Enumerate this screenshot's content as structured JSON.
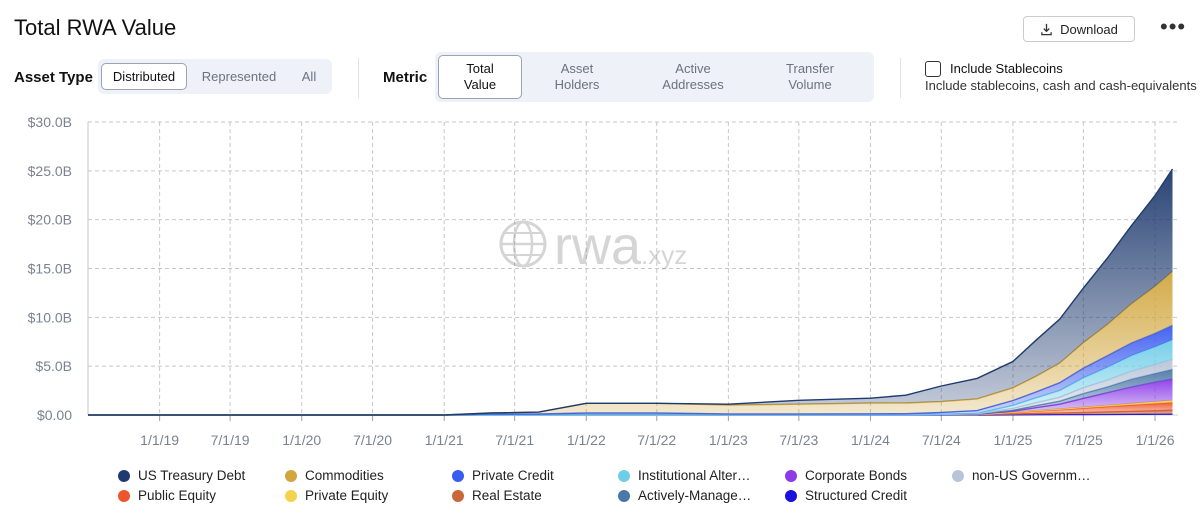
{
  "header": {
    "title": "Total RWA Value",
    "download_label": "Download",
    "more_label": "•••"
  },
  "asset_type": {
    "label": "Asset Type",
    "options": [
      "Distributed",
      "Represented",
      "All"
    ],
    "selected": "Distributed"
  },
  "metric": {
    "label": "Metric",
    "options": [
      [
        "Total",
        "Value"
      ],
      [
        "Asset",
        "Holders"
      ],
      [
        "Active",
        "Addresses"
      ],
      [
        "Transfer",
        "Volume"
      ]
    ],
    "selected": "Total Value"
  },
  "stablecoins": {
    "label": "Include Stablecoins",
    "description": "Include stablecoins, cash and cash-equivalents",
    "checked": false
  },
  "watermark": "rwa.xyz",
  "chart_data": {
    "type": "area",
    "stacked": true,
    "yticks": [
      "$0.00",
      "$5.0B",
      "$10.0B",
      "$15.0B",
      "$20.0B",
      "$25.0B",
      "$30.0B"
    ],
    "ylim": [
      0,
      30
    ],
    "y_unit": "$B",
    "xticks": [
      "1/1/19",
      "7/1/19",
      "1/1/20",
      "7/1/20",
      "1/1/21",
      "7/1/21",
      "1/1/22",
      "7/1/22",
      "1/1/23",
      "7/1/23",
      "1/1/24",
      "7/1/24",
      "1/1/25",
      "7/1/25",
      "1/1/26"
    ],
    "x_range": [
      "2018-07-01",
      "2026-03-01"
    ],
    "grid": true,
    "legend_position": "bottom",
    "x": [
      "2018-07-01",
      "2021-01-01",
      "2021-05-01",
      "2021-09-01",
      "2022-01-01",
      "2022-07-01",
      "2023-01-01",
      "2023-07-01",
      "2024-01-01",
      "2024-04-01",
      "2024-07-01",
      "2024-10-01",
      "2025-01-01",
      "2025-03-01",
      "2025-05-01",
      "2025-07-01",
      "2025-09-01",
      "2025-11-01",
      "2026-01-01",
      "2026-02-15"
    ],
    "series": [
      {
        "name": "Structured Credit",
        "color": "#1a10e0",
        "values": [
          0,
          0,
          0,
          0,
          0,
          0,
          0,
          0,
          0,
          0,
          0,
          0,
          0.02,
          0.03,
          0.04,
          0.05,
          0.06,
          0.07,
          0.08,
          0.09
        ]
      },
      {
        "name": "Real Estate",
        "color": "#c8683a",
        "values": [
          0,
          0,
          0,
          0,
          0,
          0,
          0.01,
          0.01,
          0.02,
          0.03,
          0.04,
          0.05,
          0.08,
          0.12,
          0.15,
          0.2,
          0.25,
          0.3,
          0.35,
          0.4
        ]
      },
      {
        "name": "Public Equity",
        "color": "#f0542c",
        "values": [
          0,
          0,
          0,
          0,
          0,
          0,
          0,
          0,
          0,
          0,
          0,
          0.01,
          0.15,
          0.25,
          0.35,
          0.45,
          0.55,
          0.65,
          0.75,
          0.8
        ]
      },
      {
        "name": "Private Equity",
        "color": "#f2d44b",
        "values": [
          0,
          0,
          0,
          0,
          0,
          0,
          0,
          0,
          0,
          0,
          0,
          0,
          0.03,
          0.05,
          0.07,
          0.1,
          0.12,
          0.15,
          0.18,
          0.2
        ]
      },
      {
        "name": "Corporate Bonds",
        "color": "#8b3be8",
        "values": [
          0,
          0,
          0,
          0,
          0,
          0,
          0,
          0,
          0,
          0,
          0.01,
          0.02,
          0.1,
          0.3,
          0.5,
          0.9,
          1.3,
          1.7,
          2.0,
          2.2
        ]
      },
      {
        "name": "Actively-Manage…",
        "color": "#4c78a8",
        "values": [
          0,
          0,
          0,
          0,
          0,
          0,
          0,
          0,
          0,
          0,
          0,
          0,
          0.1,
          0.2,
          0.3,
          0.5,
          0.6,
          0.8,
          0.9,
          1.0
        ]
      },
      {
        "name": "non-US Governm…",
        "color": "#b8c4d8",
        "values": [
          0,
          0,
          0,
          0,
          0,
          0,
          0,
          0,
          0,
          0,
          0.02,
          0.05,
          0.2,
          0.3,
          0.4,
          0.6,
          0.7,
          0.8,
          0.9,
          1.0
        ]
      },
      {
        "name": "Institutional Alter…",
        "color": "#70cde8",
        "values": [
          0,
          0,
          0,
          0,
          0,
          0,
          0,
          0,
          0,
          0,
          0,
          0.02,
          0.3,
          0.5,
          0.7,
          1.0,
          1.3,
          1.6,
          1.8,
          2.0
        ]
      },
      {
        "name": "Private Credit",
        "color": "#3a5cf0",
        "values": [
          0,
          0,
          0.1,
          0.1,
          0.2,
          0.2,
          0.1,
          0.1,
          0.1,
          0.1,
          0.2,
          0.3,
          0.5,
          0.6,
          0.8,
          1.0,
          1.2,
          1.3,
          1.4,
          1.5
        ]
      },
      {
        "name": "Commodities",
        "color": "#d1a63e",
        "values": [
          0,
          0,
          0.1,
          0.2,
          1.0,
          1.0,
          0.9,
          1.0,
          1.1,
          1.1,
          1.1,
          1.2,
          1.3,
          1.6,
          2.0,
          2.6,
          3.2,
          4.0,
          4.8,
          5.5
        ]
      },
      {
        "name": "US Treasury Debt",
        "color": "#1e3a6e",
        "values": [
          0,
          0,
          0,
          0,
          0,
          0,
          0.1,
          0.4,
          0.5,
          0.8,
          1.6,
          2.1,
          2.7,
          3.7,
          4.5,
          5.6,
          6.8,
          8.0,
          9.3,
          10.5
        ]
      }
    ],
    "legend_order": [
      "US Treasury Debt",
      "Commodities",
      "Private Credit",
      "Institutional Alter…",
      "Corporate Bonds",
      "non-US Governm…",
      "Public Equity",
      "Private Equity",
      "Real Estate",
      "Actively-Manage…",
      "Structured Credit"
    ]
  }
}
